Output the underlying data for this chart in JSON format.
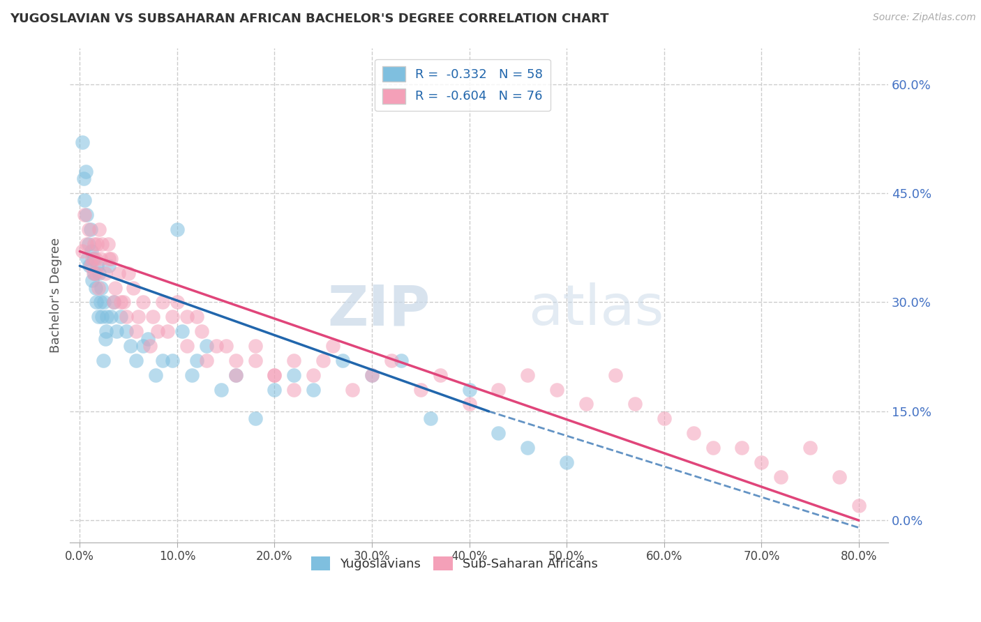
{
  "title": "YUGOSLAVIAN VS SUBSAHARAN AFRICAN BACHELOR'S DEGREE CORRELATION CHART",
  "source": "Source: ZipAtlas.com",
  "ylabel": "Bachelor's Degree",
  "x_tick_labels": [
    "0.0%",
    "10.0%",
    "20.0%",
    "30.0%",
    "40.0%",
    "50.0%",
    "60.0%",
    "70.0%",
    "80.0%"
  ],
  "x_tick_vals": [
    0,
    10,
    20,
    30,
    40,
    50,
    60,
    70,
    80
  ],
  "y_tick_vals": [
    0,
    15,
    30,
    45,
    60
  ],
  "y_tick_labels_right": [
    "0.0%",
    "15.0%",
    "30.0%",
    "45.0%",
    "60.0%"
  ],
  "xlim": [
    -1,
    83
  ],
  "ylim": [
    -3,
    65
  ],
  "blue_color": "#7fbfdf",
  "pink_color": "#f4a0b8",
  "blue_line_color": "#2166ac",
  "pink_line_color": "#e0457a",
  "legend_blue_label": "R =  -0.332   N = 58",
  "legend_pink_label": "R =  -0.604   N = 76",
  "legend_label_yugoslavians": "Yugoslavians",
  "legend_label_subsaharan": "Sub-Saharan Africans",
  "watermark_zip": "ZIP",
  "watermark_atlas": "atlas",
  "blue_scatter_x": [
    0.3,
    0.4,
    0.5,
    0.6,
    0.7,
    0.8,
    0.9,
    1.0,
    1.1,
    1.2,
    1.3,
    1.4,
    1.5,
    1.6,
    1.7,
    1.8,
    1.9,
    2.0,
    2.1,
    2.2,
    2.3,
    2.5,
    2.7,
    3.0,
    3.2,
    3.5,
    3.8,
    4.2,
    4.8,
    5.2,
    5.8,
    6.5,
    7.0,
    7.8,
    8.5,
    9.5,
    10.5,
    11.5,
    12.0,
    13.0,
    14.5,
    16.0,
    18.0,
    20.0,
    22.0,
    24.0,
    27.0,
    30.0,
    33.0,
    36.0,
    40.0,
    43.0,
    46.0,
    50.0,
    10.0,
    2.8,
    2.6,
    2.4
  ],
  "blue_scatter_y": [
    52,
    47,
    44,
    48,
    42,
    36,
    38,
    35,
    40,
    37,
    33,
    36,
    34,
    32,
    30,
    35,
    28,
    34,
    30,
    32,
    28,
    30,
    26,
    35,
    28,
    30,
    26,
    28,
    26,
    24,
    22,
    24,
    25,
    20,
    22,
    22,
    26,
    20,
    22,
    24,
    18,
    20,
    14,
    18,
    20,
    18,
    22,
    20,
    22,
    14,
    18,
    12,
    10,
    8,
    40,
    28,
    25,
    22
  ],
  "pink_scatter_x": [
    0.3,
    0.5,
    0.7,
    0.9,
    1.1,
    1.3,
    1.5,
    1.7,
    1.9,
    2.1,
    2.3,
    2.6,
    2.9,
    3.2,
    3.6,
    4.0,
    4.5,
    5.0,
    5.5,
    6.5,
    7.5,
    8.5,
    9.5,
    11.0,
    12.5,
    14.0,
    16.0,
    18.0,
    20.0,
    22.0,
    24.0,
    26.0,
    28.0,
    30.0,
    32.0,
    35.0,
    37.0,
    40.0,
    43.0,
    46.0,
    49.0,
    52.0,
    55.0,
    57.0,
    60.0,
    63.0,
    65.0,
    68.0,
    70.0,
    72.0,
    75.0,
    78.0,
    80.0,
    3.0,
    4.2,
    6.0,
    8.0,
    10.0,
    12.0,
    15.0,
    18.0,
    20.0,
    22.0,
    25.0,
    2.0,
    1.8,
    1.6,
    1.4,
    3.5,
    4.8,
    5.8,
    7.2,
    9.0,
    11.0,
    13.0,
    16.0
  ],
  "pink_scatter_y": [
    37,
    42,
    38,
    40,
    35,
    36,
    38,
    34,
    32,
    36,
    38,
    34,
    38,
    36,
    32,
    34,
    30,
    34,
    32,
    30,
    28,
    30,
    28,
    28,
    26,
    24,
    22,
    24,
    20,
    22,
    20,
    24,
    18,
    20,
    22,
    18,
    20,
    16,
    18,
    20,
    18,
    16,
    20,
    16,
    14,
    12,
    10,
    10,
    8,
    6,
    10,
    6,
    2,
    36,
    30,
    28,
    26,
    30,
    28,
    24,
    22,
    20,
    18,
    22,
    40,
    38,
    36,
    34,
    30,
    28,
    26,
    24,
    26,
    24,
    22,
    20
  ],
  "blue_line_x_start": 0,
  "blue_line_x_end": 42,
  "blue_line_y_start": 35,
  "blue_line_y_end": 15,
  "pink_line_x_start": 0,
  "pink_line_x_end": 80,
  "pink_line_y_start": 37,
  "pink_line_y_end": 0,
  "blue_dash_x_start": 42,
  "blue_dash_x_end": 80,
  "blue_dash_y_start": 15,
  "blue_dash_y_end": -1,
  "background_color": "#ffffff",
  "grid_color": "#cccccc",
  "title_color": "#333333",
  "axis_label_color": "#555555"
}
